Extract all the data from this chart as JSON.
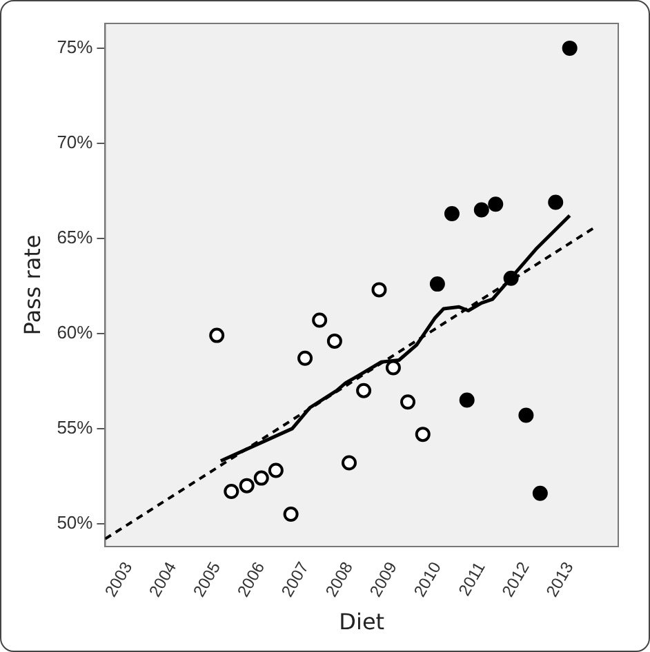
{
  "chart_data": {
    "type": "scatter",
    "xlabel": "Diet",
    "ylabel": "Pass rate",
    "xlim": [
      2002.47,
      2014.1
    ],
    "xticks": [
      2003,
      2004,
      2005,
      2006,
      2007,
      2008,
      2009,
      2010,
      2011,
      2012,
      2013
    ],
    "ylim": [
      48.8,
      76.3
    ],
    "yticks": [
      {
        "value": 50,
        "label": "50%"
      },
      {
        "value": 55,
        "label": "55%"
      },
      {
        "value": 60,
        "label": "60%"
      },
      {
        "value": 65,
        "label": "65%"
      },
      {
        "value": 70,
        "label": "70%"
      },
      {
        "value": 75,
        "label": "75%"
      }
    ],
    "grid": false,
    "legend": false,
    "series": [
      {
        "type": "scatter",
        "marker": "circle",
        "color": "#ffffff",
        "x": [
          2005.0,
          2005.33,
          2005.68,
          2006.01,
          2006.34,
          2006.68,
          2007.0,
          2007.33,
          2007.67,
          2008.0,
          2008.33,
          2008.68,
          2009.0,
          2009.33,
          2009.67
        ],
        "values": [
          59.9,
          51.7,
          52.0,
          52.4,
          52.8,
          50.5,
          58.7,
          60.7,
          59.6,
          53.2,
          57.0,
          62.3,
          58.2,
          56.4,
          54.7
        ]
      },
      {
        "type": "scatter",
        "marker": "circle",
        "color": "#000000",
        "x": [
          2010.0,
          2010.33,
          2010.67,
          2011.0,
          2011.32,
          2011.67,
          2012.01,
          2012.33,
          2012.68,
          2013.0
        ],
        "values": [
          62.6,
          66.3,
          56.5,
          66.5,
          66.8,
          62.9,
          55.7,
          51.6,
          66.9,
          75.0
        ]
      },
      {
        "type": "line",
        "marker": "none",
        "line_style": "solid",
        "color": "#000000",
        "x": [
          2005.09,
          2006.71,
          2007.11,
          2007.72,
          2007.92,
          2008.22,
          2008.73,
          2009.13,
          2009.53,
          2009.94,
          2010.14,
          2010.49,
          2010.7,
          2011.0,
          2011.25,
          2011.66,
          2012.26,
          2013.0
        ],
        "values": [
          53.3,
          55.0,
          56.1,
          57.0,
          57.4,
          57.8,
          58.5,
          58.6,
          59.4,
          60.8,
          61.3,
          61.4,
          61.2,
          61.6,
          61.8,
          62.9,
          64.5,
          66.2
        ]
      },
      {
        "type": "line",
        "marker": "none",
        "line_style": "dashed",
        "color": "#000000",
        "x": [
          2002.47,
          2013.58
        ],
        "values": [
          49.2,
          65.6
        ]
      }
    ]
  }
}
